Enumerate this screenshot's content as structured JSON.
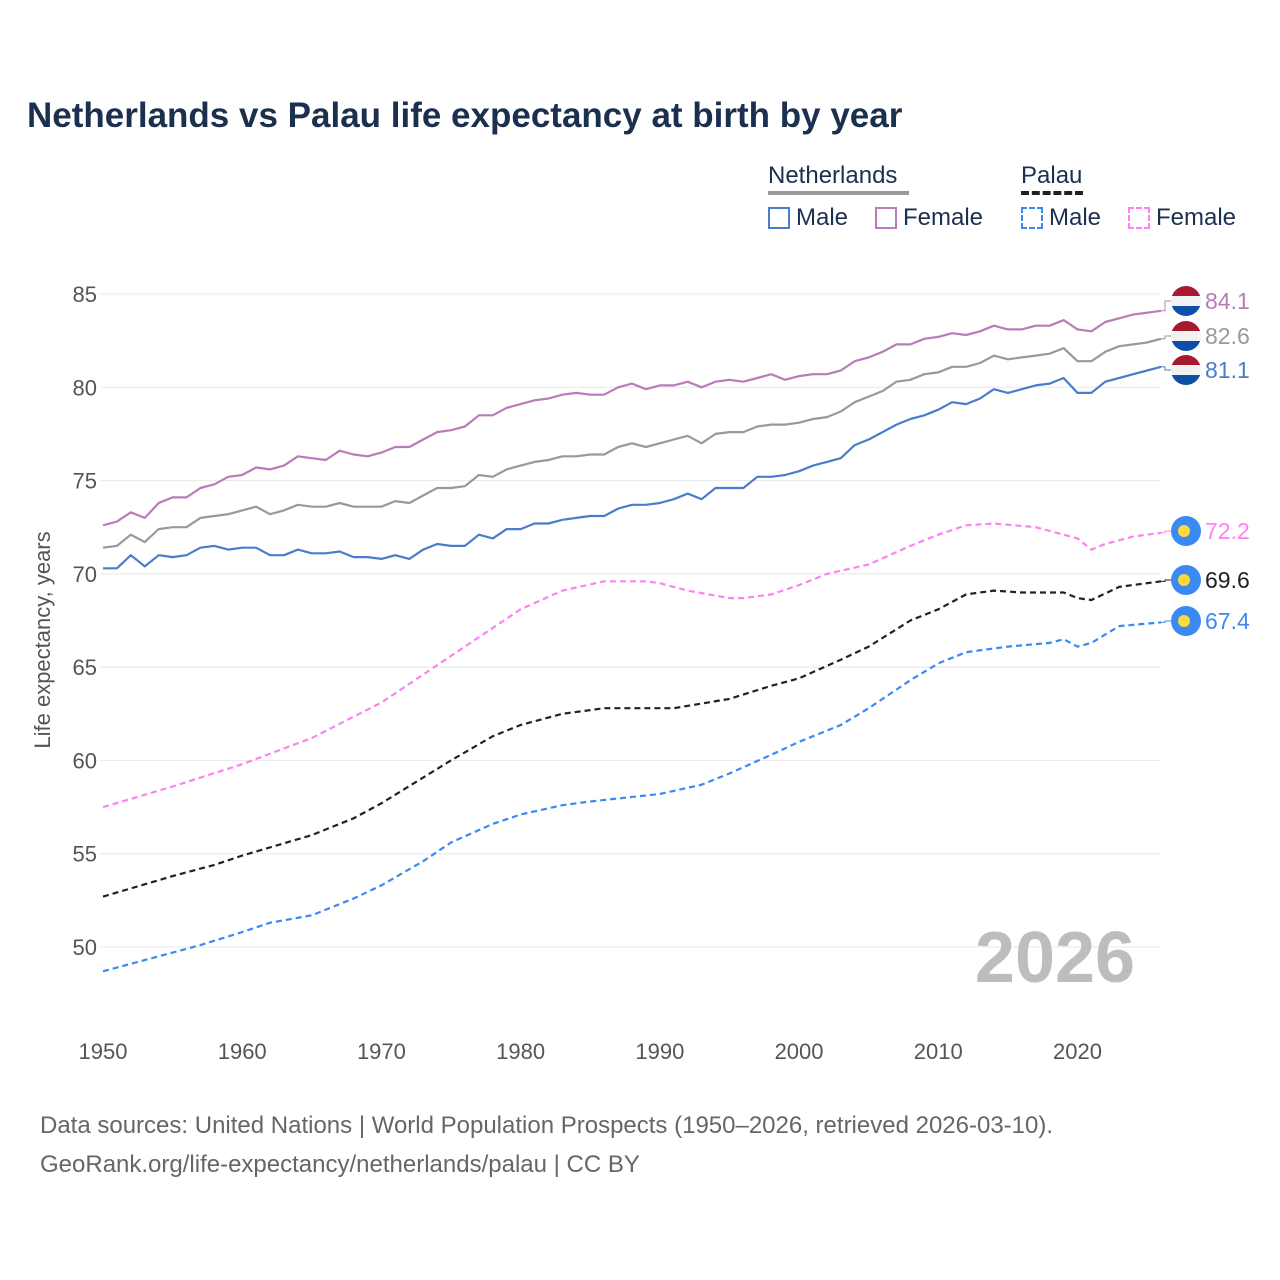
{
  "chart_data": {
    "type": "line",
    "title": "Netherlands vs Palau life expectancy at birth by year",
    "xlabel": "",
    "ylabel": "Life expectancy, years",
    "xlim": [
      1950,
      2026
    ],
    "ylim": [
      47,
      86
    ],
    "xticks": [
      "1950",
      "1960",
      "1970",
      "1980",
      "1990",
      "2000",
      "2010",
      "2020"
    ],
    "yticks": [
      "50",
      "55",
      "60",
      "65",
      "70",
      "75",
      "80",
      "85"
    ],
    "grid": true,
    "year_watermark": "2026",
    "legend": {
      "placement": "top-right",
      "groups": [
        {
          "name": "Netherlands",
          "items": [
            "Male",
            "Female"
          ]
        },
        {
          "name": "Palau",
          "items": [
            "Male",
            "Female"
          ]
        }
      ]
    },
    "series": [
      {
        "name": "Netherlands Female",
        "country": "Netherlands",
        "color": "#b87cb8",
        "dashed": false,
        "start_year": 1950,
        "end_label": "84.1",
        "values": [
          72.6,
          72.8,
          73.3,
          73.0,
          73.8,
          74.1,
          74.1,
          74.6,
          74.8,
          75.2,
          75.3,
          75.7,
          75.6,
          75.8,
          76.3,
          76.2,
          76.1,
          76.6,
          76.4,
          76.3,
          76.5,
          76.8,
          76.8,
          77.2,
          77.6,
          77.7,
          77.9,
          78.5,
          78.5,
          78.9,
          79.1,
          79.3,
          79.4,
          79.6,
          79.7,
          79.6,
          79.6,
          80.0,
          80.2,
          79.9,
          80.1,
          80.1,
          80.3,
          80.0,
          80.3,
          80.4,
          80.3,
          80.5,
          80.7,
          80.4,
          80.6,
          80.7,
          80.7,
          80.9,
          81.4,
          81.6,
          81.9,
          82.3,
          82.3,
          82.6,
          82.7,
          82.9,
          82.8,
          83.0,
          83.3,
          83.1,
          83.1,
          83.3,
          83.3,
          83.6,
          83.1,
          83.0,
          83.5,
          83.7,
          83.9,
          84.0,
          84.1
        ]
      },
      {
        "name": "Netherlands Total",
        "country": "Netherlands",
        "color": "#999999",
        "dashed": false,
        "start_year": 1950,
        "end_label": "82.6",
        "values": [
          71.4,
          71.5,
          72.1,
          71.7,
          72.4,
          72.5,
          72.5,
          73.0,
          73.1,
          73.2,
          73.4,
          73.6,
          73.2,
          73.4,
          73.7,
          73.6,
          73.6,
          73.8,
          73.6,
          73.6,
          73.6,
          73.9,
          73.8,
          74.2,
          74.6,
          74.6,
          74.7,
          75.3,
          75.2,
          75.6,
          75.8,
          76.0,
          76.1,
          76.3,
          76.3,
          76.4,
          76.4,
          76.8,
          77.0,
          76.8,
          77.0,
          77.2,
          77.4,
          77.0,
          77.5,
          77.6,
          77.6,
          77.9,
          78.0,
          78.0,
          78.1,
          78.3,
          78.4,
          78.7,
          79.2,
          79.5,
          79.8,
          80.3,
          80.4,
          80.7,
          80.8,
          81.1,
          81.1,
          81.3,
          81.7,
          81.5,
          81.6,
          81.7,
          81.8,
          82.1,
          81.4,
          81.4,
          81.9,
          82.2,
          82.3,
          82.4,
          82.6
        ]
      },
      {
        "name": "Netherlands Male",
        "country": "Netherlands",
        "color": "#4b7ccc",
        "dashed": false,
        "start_year": 1950,
        "end_label": "81.1",
        "values": [
          70.3,
          70.3,
          71.0,
          70.4,
          71.0,
          70.9,
          71.0,
          71.4,
          71.5,
          71.3,
          71.4,
          71.4,
          71.0,
          71.0,
          71.3,
          71.1,
          71.1,
          71.2,
          70.9,
          70.9,
          70.8,
          71.0,
          70.8,
          71.3,
          71.6,
          71.5,
          71.5,
          72.1,
          71.9,
          72.4,
          72.4,
          72.7,
          72.7,
          72.9,
          73.0,
          73.1,
          73.1,
          73.5,
          73.7,
          73.7,
          73.8,
          74.0,
          74.3,
          74.0,
          74.6,
          74.6,
          74.6,
          75.2,
          75.2,
          75.3,
          75.5,
          75.8,
          76.0,
          76.2,
          76.9,
          77.2,
          77.6,
          78.0,
          78.3,
          78.5,
          78.8,
          79.2,
          79.1,
          79.4,
          79.9,
          79.7,
          79.9,
          80.1,
          80.2,
          80.5,
          79.7,
          79.7,
          80.3,
          80.5,
          80.7,
          80.9,
          81.1
        ]
      },
      {
        "name": "Palau Female",
        "country": "Palau",
        "color": "#ff80f2",
        "dashed": true,
        "end_label": "72.2",
        "points": [
          [
            1950,
            57.5
          ],
          [
            1955,
            58.6
          ],
          [
            1960,
            59.8
          ],
          [
            1965,
            61.2
          ],
          [
            1970,
            63.1
          ],
          [
            1975,
            65.6
          ],
          [
            1980,
            68.1
          ],
          [
            1983,
            69.1
          ],
          [
            1986,
            69.6
          ],
          [
            1989,
            69.6
          ],
          [
            1990,
            69.5
          ],
          [
            1992,
            69.1
          ],
          [
            1995,
            68.7
          ],
          [
            1996,
            68.7
          ],
          [
            1998,
            68.9
          ],
          [
            2000,
            69.4
          ],
          [
            2002,
            70.0
          ],
          [
            2005,
            70.5
          ],
          [
            2008,
            71.5
          ],
          [
            2010,
            72.1
          ],
          [
            2012,
            72.6
          ],
          [
            2014,
            72.7
          ],
          [
            2017,
            72.5
          ],
          [
            2019,
            72.1
          ],
          [
            2020,
            71.9
          ],
          [
            2021,
            71.3
          ],
          [
            2022,
            71.6
          ],
          [
            2023,
            71.8
          ],
          [
            2024,
            72.0
          ],
          [
            2026,
            72.2
          ]
        ]
      },
      {
        "name": "Palau Total",
        "country": "Palau",
        "color": "#222222",
        "dashed": true,
        "end_label": "69.6",
        "points": [
          [
            1950,
            52.7
          ],
          [
            1955,
            53.8
          ],
          [
            1958,
            54.4
          ],
          [
            1960,
            54.9
          ],
          [
            1965,
            56.0
          ],
          [
            1968,
            56.9
          ],
          [
            1970,
            57.7
          ],
          [
            1975,
            60.0
          ],
          [
            1978,
            61.3
          ],
          [
            1980,
            61.9
          ],
          [
            1983,
            62.5
          ],
          [
            1985,
            62.7
          ],
          [
            1986,
            62.8
          ],
          [
            1991,
            62.8
          ],
          [
            1995,
            63.3
          ],
          [
            1998,
            64.0
          ],
          [
            2000,
            64.4
          ],
          [
            2003,
            65.4
          ],
          [
            2005,
            66.1
          ],
          [
            2008,
            67.5
          ],
          [
            2010,
            68.1
          ],
          [
            2012,
            68.9
          ],
          [
            2014,
            69.1
          ],
          [
            2016,
            69.0
          ],
          [
            2019,
            69.0
          ],
          [
            2020,
            68.7
          ],
          [
            2021,
            68.6
          ],
          [
            2023,
            69.3
          ],
          [
            2026,
            69.6
          ]
        ]
      },
      {
        "name": "Palau Male",
        "country": "Palau",
        "color": "#3a8af2",
        "dashed": true,
        "end_label": "67.4",
        "points": [
          [
            1950,
            48.7
          ],
          [
            1955,
            49.7
          ],
          [
            1957,
            50.1
          ],
          [
            1960,
            50.8
          ],
          [
            1962,
            51.3
          ],
          [
            1965,
            51.7
          ],
          [
            1968,
            52.6
          ],
          [
            1970,
            53.3
          ],
          [
            1973,
            54.6
          ],
          [
            1975,
            55.6
          ],
          [
            1978,
            56.6
          ],
          [
            1980,
            57.1
          ],
          [
            1983,
            57.6
          ],
          [
            1985,
            57.8
          ],
          [
            1990,
            58.2
          ],
          [
            1993,
            58.7
          ],
          [
            1995,
            59.3
          ],
          [
            1998,
            60.3
          ],
          [
            2000,
            61.0
          ],
          [
            2003,
            61.9
          ],
          [
            2005,
            62.8
          ],
          [
            2008,
            64.3
          ],
          [
            2010,
            65.2
          ],
          [
            2012,
            65.8
          ],
          [
            2015,
            66.1
          ],
          [
            2018,
            66.3
          ],
          [
            2019,
            66.5
          ],
          [
            2020,
            66.1
          ],
          [
            2021,
            66.3
          ],
          [
            2023,
            67.2
          ],
          [
            2026,
            67.4
          ]
        ]
      }
    ]
  },
  "source": {
    "line1": "Data sources: United Nations | World Population Prospects (1950–2026, retrieved 2026-03-10).",
    "line2": "GeoRank.org/life-expectancy/netherlands/palau | CC BY"
  }
}
